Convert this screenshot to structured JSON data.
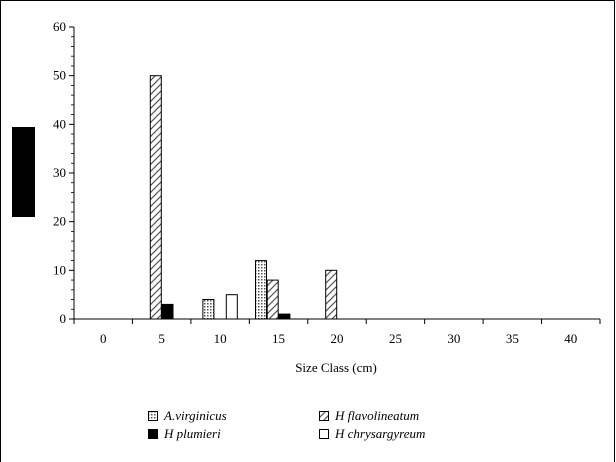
{
  "chart_data": {
    "type": "bar",
    "xlabel": "Size Class (cm)",
    "x_ticks": [
      "0",
      "5",
      "10",
      "15",
      "20",
      "25",
      "30",
      "35",
      "40"
    ],
    "y_ticks": [
      "0",
      "10",
      "20",
      "30",
      "40",
      "50",
      "60"
    ],
    "ylim": [
      0,
      60
    ],
    "xlim": [
      -2.5,
      42.5
    ],
    "grid": false,
    "legend_position": "bottom",
    "series": [
      {
        "name": "A.virginicus",
        "pattern": "grid",
        "points": [
          {
            "x": 9,
            "y": 4
          },
          {
            "x": 13.5,
            "y": 12
          }
        ]
      },
      {
        "name": "H flavolineatum",
        "pattern": "hatch",
        "points": [
          {
            "x": 4.5,
            "y": 50
          },
          {
            "x": 14.5,
            "y": 8
          },
          {
            "x": 19.5,
            "y": 10
          }
        ]
      },
      {
        "name": "H plumieri",
        "pattern": "solid",
        "points": [
          {
            "x": 5.5,
            "y": 3
          },
          {
            "x": 15.5,
            "y": 1
          }
        ]
      },
      {
        "name": "H chrysargyreum",
        "pattern": "empty",
        "points": [
          {
            "x": 11,
            "y": 5
          }
        ]
      }
    ]
  },
  "colors": {
    "axis": "#000000",
    "solid": "#000000",
    "empty": "#ffffff"
  }
}
